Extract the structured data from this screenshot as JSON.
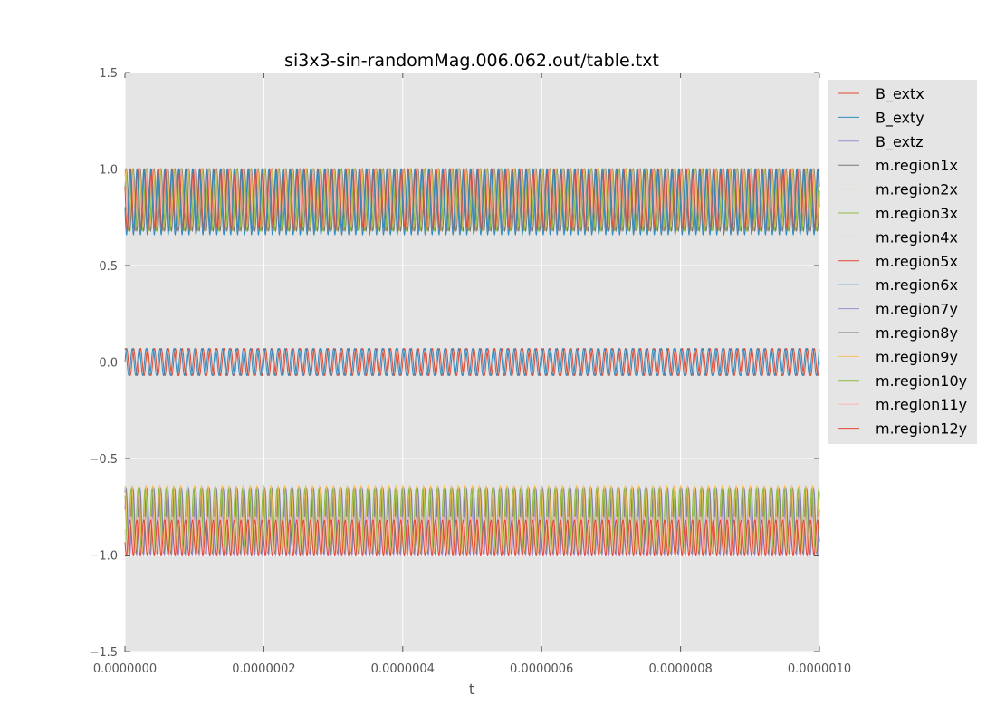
{
  "chart_data": {
    "type": "line",
    "title": "si3x3-sin-randomMag.006.062.out/table.txt",
    "xlabel": "t",
    "ylabel": "",
    "xlim": [
      0,
      1e-06
    ],
    "ylim": [
      -1.5,
      1.5
    ],
    "x_ticks": [
      "0.0000000",
      "0.0000002",
      "0.0000004",
      "0.0000006",
      "0.0000008",
      "0.0000010"
    ],
    "y_ticks": [
      "1.5",
      "1.0",
      "0.5",
      "0.0",
      "−0.5",
      "−1.0",
      "−1.5"
    ],
    "grid": true,
    "legend_placement": "outside-right",
    "oscillation_cycles": 100,
    "series": [
      {
        "name": "B_extx",
        "color": "#e24a33",
        "center": 0.0,
        "amplitude": 0.07,
        "phase": 0.0,
        "min": -0.07,
        "max": 0.07
      },
      {
        "name": "B_exty",
        "color": "#348abd",
        "center": 0.0,
        "amplitude": 0.07,
        "phase": 1.2,
        "min": -0.07,
        "max": 0.07
      },
      {
        "name": "B_extz",
        "color": "#988ed5",
        "center": 0.0,
        "amplitude": 0.0,
        "phase": 0.0,
        "min": 0.0,
        "max": 0.0
      },
      {
        "name": "m.region1x",
        "color": "#777777",
        "center": 0.84,
        "amplitude": 0.16,
        "phase": 0.3,
        "min": 0.68,
        "max": 1.0
      },
      {
        "name": "m.region2x",
        "color": "#fbc15e",
        "center": 0.85,
        "amplitude": 0.15,
        "phase": 0.9,
        "min": 0.7,
        "max": 1.0
      },
      {
        "name": "m.region3x",
        "color": "#8eba42",
        "center": 0.84,
        "amplitude": 0.16,
        "phase": 1.5,
        "min": 0.68,
        "max": 1.0
      },
      {
        "name": "m.region4x",
        "color": "#ffb5b8",
        "center": 0.88,
        "amplitude": 0.12,
        "phase": 2.1,
        "min": 0.76,
        "max": 1.0
      },
      {
        "name": "m.region5x",
        "color": "#e24a33",
        "center": 0.84,
        "amplitude": 0.16,
        "phase": 2.7,
        "min": 0.68,
        "max": 1.0
      },
      {
        "name": "m.region6x",
        "color": "#348abd",
        "center": 0.83,
        "amplitude": 0.17,
        "phase": 3.3,
        "min": 0.66,
        "max": 1.0
      },
      {
        "name": "m.region7y",
        "color": "#988ed5",
        "center": -0.83,
        "amplitude": 0.17,
        "phase": 0.4,
        "min": -1.0,
        "max": -0.66
      },
      {
        "name": "m.region8y",
        "color": "#777777",
        "center": -0.82,
        "amplitude": 0.17,
        "phase": 1.0,
        "min": -0.99,
        "max": -0.65
      },
      {
        "name": "m.region9y",
        "color": "#fbc15e",
        "center": -0.81,
        "amplitude": 0.17,
        "phase": 1.6,
        "min": -0.98,
        "max": -0.64
      },
      {
        "name": "m.region10y",
        "color": "#8eba42",
        "center": -0.82,
        "amplitude": 0.16,
        "phase": 2.2,
        "min": -0.98,
        "max": -0.66
      },
      {
        "name": "m.region11y",
        "color": "#ffb5b8",
        "center": -0.9,
        "amplitude": 0.1,
        "phase": 2.8,
        "min": -1.0,
        "max": -0.8
      },
      {
        "name": "m.region12y",
        "color": "#e24a33",
        "center": -0.91,
        "amplitude": 0.09,
        "phase": 3.4,
        "min": -1.0,
        "max": -0.82
      }
    ]
  }
}
